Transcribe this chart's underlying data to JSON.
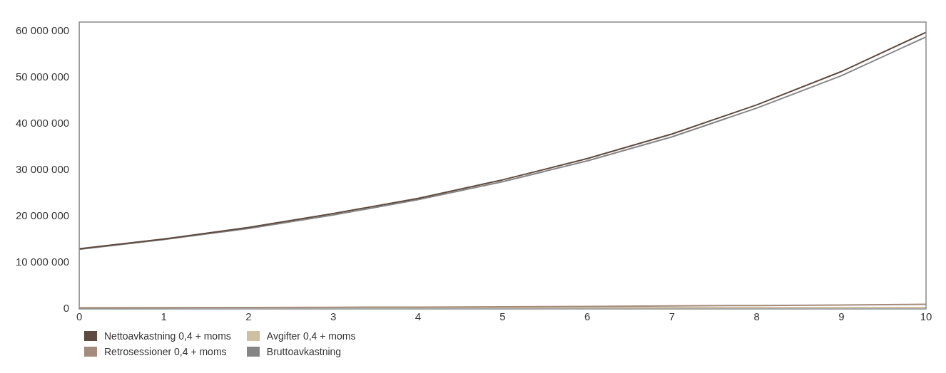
{
  "chart_data": {
    "type": "line",
    "x": [
      0,
      1,
      2,
      3,
      4,
      5,
      6,
      7,
      8,
      9,
      10
    ],
    "xlim": [
      0,
      10
    ],
    "xticks": [
      0,
      1,
      2,
      3,
      4,
      5,
      6,
      7,
      8,
      9,
      10
    ],
    "ylim": [
      0,
      62000000
    ],
    "yticks": [
      0,
      10000000,
      20000000,
      30000000,
      40000000,
      50000000,
      60000000
    ],
    "series": [
      {
        "name": "Nettoavkastning 0,4 + moms",
        "color": "#5e4a3e",
        "values": [
          13000000,
          15100000,
          17600000,
          20600000,
          23900000,
          27900000,
          32500000,
          37800000,
          44100000,
          51300000,
          59800000
        ]
      },
      {
        "name": "Retrosessioner 0,4 + moms",
        "color": "#a58b7b",
        "values": [
          200000,
          250000,
          300000,
          350000,
          400000,
          450000,
          550000,
          650000,
          750000,
          850000,
          1000000
        ]
      },
      {
        "name": "Avgifter 0,4 + moms",
        "color": "#cfbfa3",
        "values": [
          300000,
          300000,
          300000,
          300000,
          300000,
          300000,
          300000,
          300000,
          300000,
          300000,
          300000
        ]
      },
      {
        "name": "Bruttoavkastning",
        "color": "#858585",
        "values": [
          12900000,
          15000000,
          17400000,
          20300000,
          23600000,
          27500000,
          32000000,
          37200000,
          43400000,
          50400000,
          58800000
        ]
      }
    ],
    "grid": false,
    "legend": "bottom left",
    "marker": "none",
    "line_style": "solid"
  }
}
